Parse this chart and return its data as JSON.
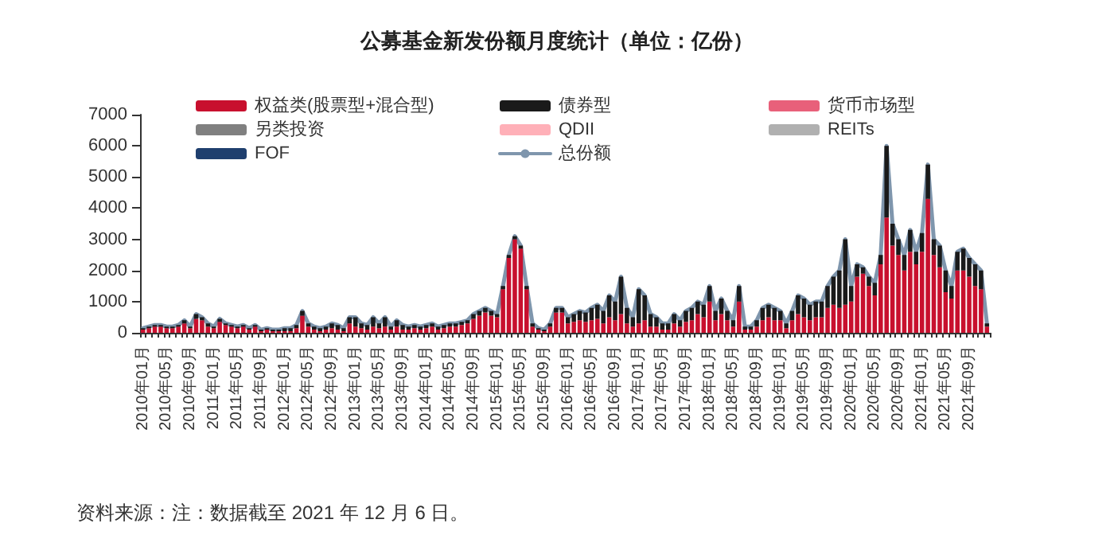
{
  "chart_data": {
    "type": "bar",
    "title": "公募基金新发份额月度统计（单位：亿份）",
    "stacked": true,
    "legend": "top left",
    "grid": false,
    "ylim": [
      0,
      7000
    ],
    "yticks": [
      0,
      1000,
      2000,
      3000,
      4000,
      5000,
      6000,
      7000
    ],
    "annotations": [
      "资料来源：注：数据截至 2021 年 12 月 6 日。"
    ],
    "categories": [
      "2010年01月",
      null,
      null,
      null,
      "2010年05月",
      null,
      null,
      null,
      "2010年09月",
      null,
      null,
      null,
      "2011年01月",
      null,
      null,
      null,
      "2011年05月",
      null,
      null,
      null,
      "2011年09月",
      null,
      null,
      null,
      "2012年01月",
      null,
      null,
      null,
      "2012年05月",
      null,
      null,
      null,
      "2012年09月",
      null,
      null,
      null,
      "2013年01月",
      null,
      null,
      null,
      "2013年05月",
      null,
      null,
      null,
      "2013年09月",
      null,
      null,
      null,
      "2014年01月",
      null,
      null,
      null,
      "2014年05月",
      null,
      null,
      null,
      "2014年09月",
      null,
      null,
      null,
      "2015年01月",
      null,
      null,
      null,
      "2015年05月",
      null,
      null,
      null,
      "2015年09月",
      null,
      null,
      null,
      "2016年01月",
      null,
      null,
      null,
      "2016年05月",
      null,
      null,
      null,
      "2016年09月",
      null,
      null,
      null,
      "2017年01月",
      null,
      null,
      null,
      "2017年05月",
      null,
      null,
      null,
      "2017年09月",
      null,
      null,
      null,
      "2018年01月",
      null,
      null,
      null,
      "2018年05月",
      null,
      null,
      null,
      "2018年09月",
      null,
      null,
      null,
      "2019年01月",
      null,
      null,
      null,
      "2019年05月",
      null,
      null,
      null,
      "2019年09月",
      null,
      null,
      null,
      "2020年01月",
      null,
      null,
      null,
      "2020年05月",
      null,
      null,
      null,
      "2020年09月",
      null,
      null,
      null,
      "2021年01月",
      null,
      null,
      null,
      "2021年05月",
      null,
      null,
      null,
      "2021年09月",
      null,
      null,
      null
    ],
    "series": [
      {
        "name": "权益类(股票型+混合型)",
        "color": "#c8102e",
        "values": [
          100,
          150,
          200,
          200,
          150,
          150,
          200,
          300,
          150,
          450,
          400,
          200,
          150,
          350,
          250,
          200,
          150,
          200,
          100,
          200,
          50,
          100,
          50,
          50,
          50,
          50,
          150,
          550,
          200,
          100,
          50,
          100,
          150,
          100,
          50,
          300,
          200,
          150,
          100,
          200,
          150,
          200,
          100,
          200,
          100,
          100,
          150,
          100,
          150,
          200,
          100,
          150,
          200,
          200,
          250,
          300,
          450,
          550,
          650,
          550,
          500,
          1400,
          2400,
          3000,
          2700,
          1400,
          200,
          100,
          50,
          200,
          650,
          650,
          300,
          350,
          400,
          350,
          400,
          450,
          300,
          500,
          400,
          600,
          300,
          200,
          300,
          400,
          200,
          200,
          100,
          100,
          300,
          200,
          350,
          400,
          600,
          500,
          1000,
          400,
          600,
          400,
          200,
          1000,
          100,
          100,
          200,
          400,
          500,
          400,
          400,
          150,
          400,
          600,
          500,
          400,
          500,
          500,
          800,
          900,
          800,
          900,
          1000,
          1800,
          1900,
          1500,
          1200,
          2200,
          3700,
          2800,
          2500,
          2000,
          2600,
          2200,
          2600,
          4300,
          2500,
          2100,
          1300,
          1100,
          2000,
          2000,
          1800,
          1500,
          1400,
          200
        ]
      },
      {
        "name": "债券型",
        "color": "#1a1a1a",
        "values": [
          50,
          50,
          50,
          50,
          50,
          50,
          50,
          100,
          50,
          150,
          100,
          100,
          50,
          100,
          50,
          50,
          50,
          50,
          50,
          50,
          50,
          50,
          50,
          50,
          100,
          100,
          100,
          150,
          100,
          100,
          100,
          100,
          150,
          150,
          100,
          200,
          300,
          150,
          150,
          300,
          150,
          300,
          100,
          200,
          150,
          100,
          100,
          100,
          100,
          100,
          100,
          100,
          100,
          100,
          100,
          100,
          150,
          150,
          150,
          150,
          100,
          100,
          100,
          100,
          100,
          100,
          100,
          50,
          50,
          100,
          150,
          150,
          200,
          250,
          300,
          300,
          400,
          450,
          400,
          700,
          600,
          1200,
          500,
          300,
          1100,
          800,
          400,
          300,
          200,
          200,
          300,
          200,
          350,
          400,
          400,
          400,
          500,
          300,
          500,
          300,
          200,
          500,
          100,
          100,
          200,
          400,
          400,
          400,
          300,
          150,
          300,
          600,
          600,
          500,
          500,
          500,
          700,
          900,
          1200,
          2100,
          500,
          400,
          200,
          300,
          400,
          300,
          2300,
          700,
          500,
          500,
          700,
          400,
          600,
          1100,
          500,
          700,
          700,
          400,
          600,
          700,
          600,
          700,
          600,
          100
        ]
      },
      {
        "name": "货币市场型",
        "color": "#e8607a",
        "values": [
          0,
          0,
          0,
          0,
          0,
          0,
          0,
          0,
          0,
          0,
          0,
          0,
          0,
          0,
          0,
          0,
          0,
          0,
          0,
          0,
          0,
          0,
          0,
          0,
          0,
          0,
          0,
          0,
          0,
          0,
          0,
          0,
          0,
          0,
          0,
          0,
          0,
          0,
          0,
          0,
          0,
          0,
          0,
          0,
          0,
          0,
          0,
          0,
          0,
          0,
          0,
          0,
          0,
          0,
          0,
          0,
          0,
          0,
          0,
          0,
          0,
          0,
          0,
          0,
          0,
          0,
          0,
          0,
          0,
          0,
          0,
          0,
          0,
          0,
          0,
          0,
          0,
          0,
          0,
          0,
          0,
          0,
          0,
          0,
          0,
          0,
          0,
          0,
          0,
          0,
          0,
          0,
          0,
          0,
          0,
          0,
          0,
          0,
          0,
          0,
          0,
          0,
          0,
          0,
          0,
          0,
          0,
          0,
          0,
          0,
          0,
          0,
          0,
          0,
          0,
          0,
          0,
          0,
          0,
          0,
          0,
          0,
          0,
          0,
          0,
          0,
          0,
          0,
          0,
          0,
          0,
          0,
          0,
          0,
          0,
          0,
          0,
          0,
          0,
          0,
          0,
          0,
          0,
          0
        ]
      },
      {
        "name": "另类投资",
        "color": "#808080",
        "values": [
          0,
          0,
          0,
          0,
          0,
          0,
          0,
          0,
          0,
          0,
          0,
          0,
          0,
          0,
          0,
          0,
          0,
          0,
          0,
          0,
          0,
          0,
          0,
          0,
          0,
          0,
          0,
          0,
          0,
          0,
          0,
          0,
          0,
          0,
          0,
          0,
          0,
          0,
          0,
          0,
          0,
          0,
          0,
          0,
          0,
          0,
          0,
          0,
          0,
          0,
          0,
          0,
          0,
          0,
          0,
          0,
          0,
          0,
          0,
          0,
          0,
          0,
          0,
          0,
          0,
          0,
          0,
          0,
          0,
          0,
          0,
          0,
          0,
          0,
          0,
          0,
          0,
          0,
          0,
          0,
          0,
          0,
          0,
          0,
          0,
          0,
          0,
          0,
          0,
          0,
          0,
          0,
          0,
          0,
          0,
          0,
          0,
          0,
          0,
          0,
          0,
          0,
          0,
          0,
          0,
          0,
          0,
          0,
          0,
          0,
          0,
          0,
          0,
          0,
          0,
          0,
          0,
          0,
          0,
          0,
          0,
          0,
          0,
          0,
          0,
          0,
          0,
          0,
          0,
          0,
          0,
          0,
          0,
          0,
          0,
          0,
          0,
          0,
          0,
          0,
          0,
          0,
          0,
          0
        ]
      },
      {
        "name": "QDII",
        "color": "#ffb0b8",
        "values": [
          0,
          0,
          0,
          0,
          0,
          0,
          0,
          0,
          0,
          0,
          0,
          0,
          0,
          0,
          0,
          0,
          0,
          0,
          0,
          0,
          0,
          0,
          0,
          0,
          0,
          0,
          0,
          0,
          0,
          0,
          0,
          0,
          0,
          0,
          0,
          0,
          0,
          0,
          0,
          0,
          0,
          0,
          0,
          0,
          0,
          0,
          0,
          0,
          0,
          0,
          0,
          0,
          0,
          0,
          0,
          0,
          0,
          0,
          0,
          0,
          0,
          0,
          0,
          0,
          0,
          0,
          0,
          0,
          0,
          0,
          0,
          0,
          0,
          0,
          0,
          0,
          0,
          0,
          0,
          0,
          0,
          0,
          0,
          0,
          0,
          0,
          0,
          0,
          0,
          0,
          0,
          0,
          0,
          0,
          0,
          0,
          0,
          0,
          0,
          0,
          0,
          0,
          0,
          0,
          0,
          0,
          0,
          0,
          0,
          0,
          0,
          0,
          0,
          0,
          0,
          0,
          0,
          0,
          0,
          0,
          0,
          0,
          0,
          0,
          0,
          0,
          0,
          0,
          0,
          0,
          0,
          0,
          0,
          0,
          0,
          0,
          0,
          0,
          0,
          0,
          0,
          0,
          0,
          0
        ]
      },
      {
        "name": "REITs",
        "color": "#b0b0b0",
        "values": [
          0,
          0,
          0,
          0,
          0,
          0,
          0,
          0,
          0,
          0,
          0,
          0,
          0,
          0,
          0,
          0,
          0,
          0,
          0,
          0,
          0,
          0,
          0,
          0,
          0,
          0,
          0,
          0,
          0,
          0,
          0,
          0,
          0,
          0,
          0,
          0,
          0,
          0,
          0,
          0,
          0,
          0,
          0,
          0,
          0,
          0,
          0,
          0,
          0,
          0,
          0,
          0,
          0,
          0,
          0,
          0,
          0,
          0,
          0,
          0,
          0,
          0,
          0,
          0,
          0,
          0,
          0,
          0,
          0,
          0,
          0,
          0,
          0,
          0,
          0,
          0,
          0,
          0,
          0,
          0,
          0,
          0,
          0,
          0,
          0,
          0,
          0,
          0,
          0,
          0,
          0,
          0,
          0,
          0,
          0,
          0,
          0,
          0,
          0,
          0,
          0,
          0,
          0,
          0,
          0,
          0,
          0,
          0,
          0,
          0,
          0,
          0,
          0,
          0,
          0,
          0,
          0,
          0,
          0,
          0,
          0,
          0,
          0,
          0,
          0,
          0,
          0,
          0,
          0,
          0,
          0,
          0,
          0,
          0,
          0,
          0,
          0,
          0,
          0,
          0,
          0,
          0,
          0,
          0
        ]
      },
      {
        "name": "FOF",
        "color": "#1f3f6e",
        "values": [
          0,
          0,
          0,
          0,
          0,
          0,
          0,
          0,
          0,
          0,
          0,
          0,
          0,
          0,
          0,
          0,
          0,
          0,
          0,
          0,
          0,
          0,
          0,
          0,
          0,
          0,
          0,
          0,
          0,
          0,
          0,
          0,
          0,
          0,
          0,
          0,
          0,
          0,
          0,
          0,
          0,
          0,
          0,
          0,
          0,
          0,
          0,
          0,
          0,
          0,
          0,
          0,
          0,
          0,
          0,
          0,
          0,
          0,
          0,
          0,
          0,
          0,
          0,
          0,
          0,
          0,
          0,
          0,
          0,
          0,
          0,
          0,
          0,
          0,
          0,
          0,
          0,
          0,
          0,
          0,
          0,
          0,
          0,
          0,
          0,
          0,
          0,
          0,
          0,
          0,
          0,
          0,
          0,
          0,
          0,
          0,
          0,
          0,
          0,
          0,
          0,
          0,
          0,
          0,
          0,
          0,
          0,
          0,
          0,
          0,
          0,
          0,
          0,
          0,
          0,
          0,
          0,
          0,
          0,
          0,
          0,
          0,
          0,
          0,
          0,
          0,
          0,
          0,
          0,
          0,
          0,
          0,
          0,
          0,
          0,
          0,
          0,
          0,
          0,
          0,
          0,
          0,
          0,
          0
        ]
      },
      {
        "name": "总份额",
        "type": "line",
        "marker": "none",
        "line_style": "solid",
        "color": "#7f96ad",
        "values": [
          150,
          200,
          250,
          250,
          200,
          200,
          250,
          400,
          200,
          600,
          500,
          300,
          200,
          450,
          300,
          250,
          200,
          250,
          150,
          250,
          100,
          150,
          100,
          100,
          150,
          150,
          250,
          700,
          300,
          200,
          150,
          200,
          300,
          250,
          150,
          500,
          500,
          300,
          250,
          500,
          300,
          500,
          200,
          400,
          250,
          200,
          250,
          200,
          250,
          300,
          200,
          250,
          300,
          300,
          350,
          400,
          600,
          700,
          800,
          700,
          600,
          1500,
          2500,
          3100,
          2800,
          1500,
          300,
          150,
          100,
          300,
          800,
          800,
          500,
          600,
          700,
          650,
          800,
          900,
          700,
          1200,
          1000,
          1800,
          800,
          500,
          1400,
          1200,
          600,
          500,
          300,
          300,
          600,
          400,
          700,
          800,
          1000,
          900,
          1500,
          700,
          1100,
          700,
          400,
          1500,
          200,
          200,
          400,
          800,
          900,
          800,
          700,
          300,
          700,
          1200,
          1100,
          900,
          1000,
          1000,
          1500,
          1800,
          2000,
          3000,
          1500,
          2200,
          2100,
          1800,
          1600,
          2500,
          6000,
          3500,
          3000,
          2500,
          3300,
          2600,
          3200,
          5400,
          3000,
          2800,
          2000,
          1500,
          2600,
          2700,
          2400,
          2200,
          2000,
          300
        ]
      }
    ]
  }
}
